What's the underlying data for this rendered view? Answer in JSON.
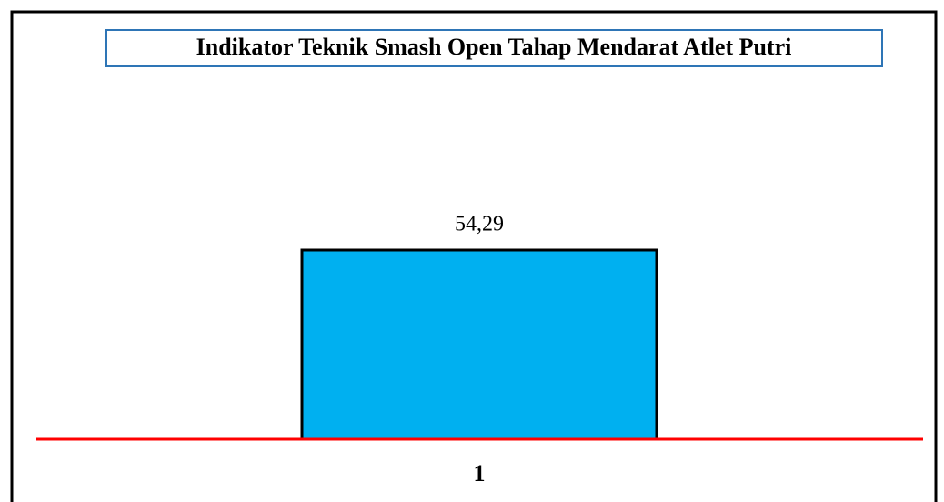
{
  "chart_data": {
    "type": "bar",
    "title": "Indikator Teknik Smash Open Tahap Mendarat Atlet Putri",
    "categories": [
      "1"
    ],
    "values": [
      54.29
    ],
    "value_labels": [
      "54,29"
    ],
    "color": "#00b0f0"
  }
}
